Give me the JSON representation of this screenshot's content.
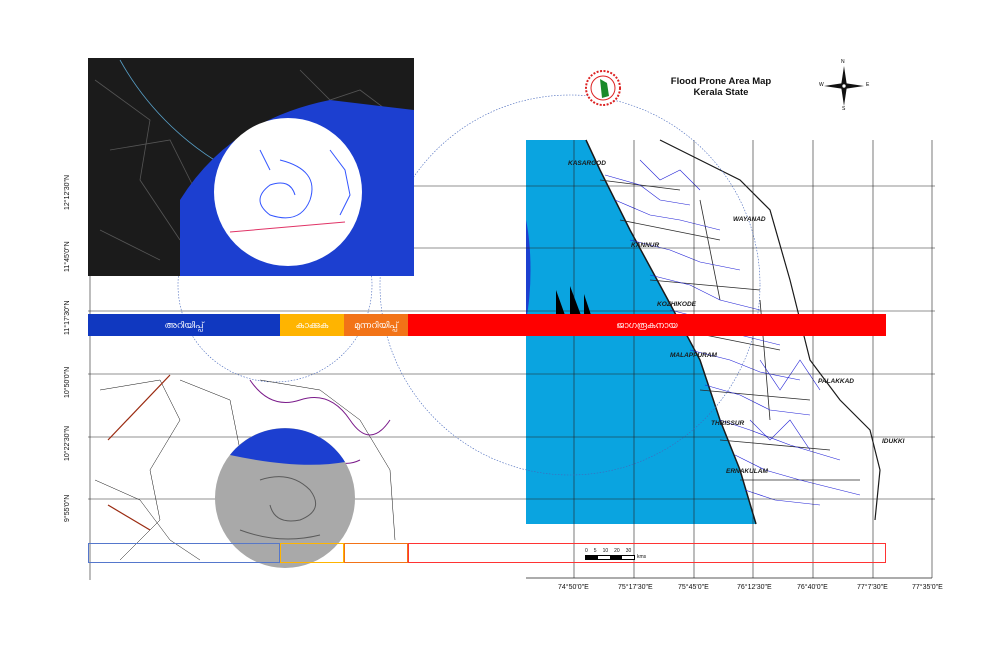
{
  "map": {
    "title_line1": "Flood Prone Area Map",
    "title_line2": "Kerala State",
    "latitude_labels": [
      "12°12'30\"N",
      "11°45'0\"N",
      "11°17'30\"N",
      "10°50'0\"N",
      "10°22'30\"N",
      "9°55'0\"N"
    ],
    "longitude_labels": [
      "74°50'0\"E",
      "75°17'30\"E",
      "75°45'0\"E",
      "76°12'30\"E",
      "76°40'0\"E",
      "77°7'30\"E",
      "77°35'0\"E"
    ],
    "districts": [
      "KASARGOD",
      "WAYANAD",
      "KANNUR",
      "KOZHIKODE",
      "MALAPPURAM",
      "PALAKKAD",
      "THRISSUR",
      "IDUKKI",
      "ERNAKULAM"
    ],
    "legend": [
      {
        "label": "അറിയിപ്പ്",
        "color": "#1038c0"
      },
      {
        "label": "കാക്കുക",
        "color": "#ffb400"
      },
      {
        "label": "മുന്നറിയിപ്പ്",
        "color": "#f27317"
      },
      {
        "label": "ജാഗരൂകനായ",
        "color": "#ff0000"
      }
    ],
    "scale_ticks": [
      "0",
      "5",
      "10",
      "20",
      "30"
    ],
    "scale_unit": "kms",
    "sea_color": "#0aa4e0",
    "river_color": "#2121d6",
    "compass_labels": {
      "north": "N",
      "east": "E",
      "west": "W",
      "south": "S"
    }
  }
}
